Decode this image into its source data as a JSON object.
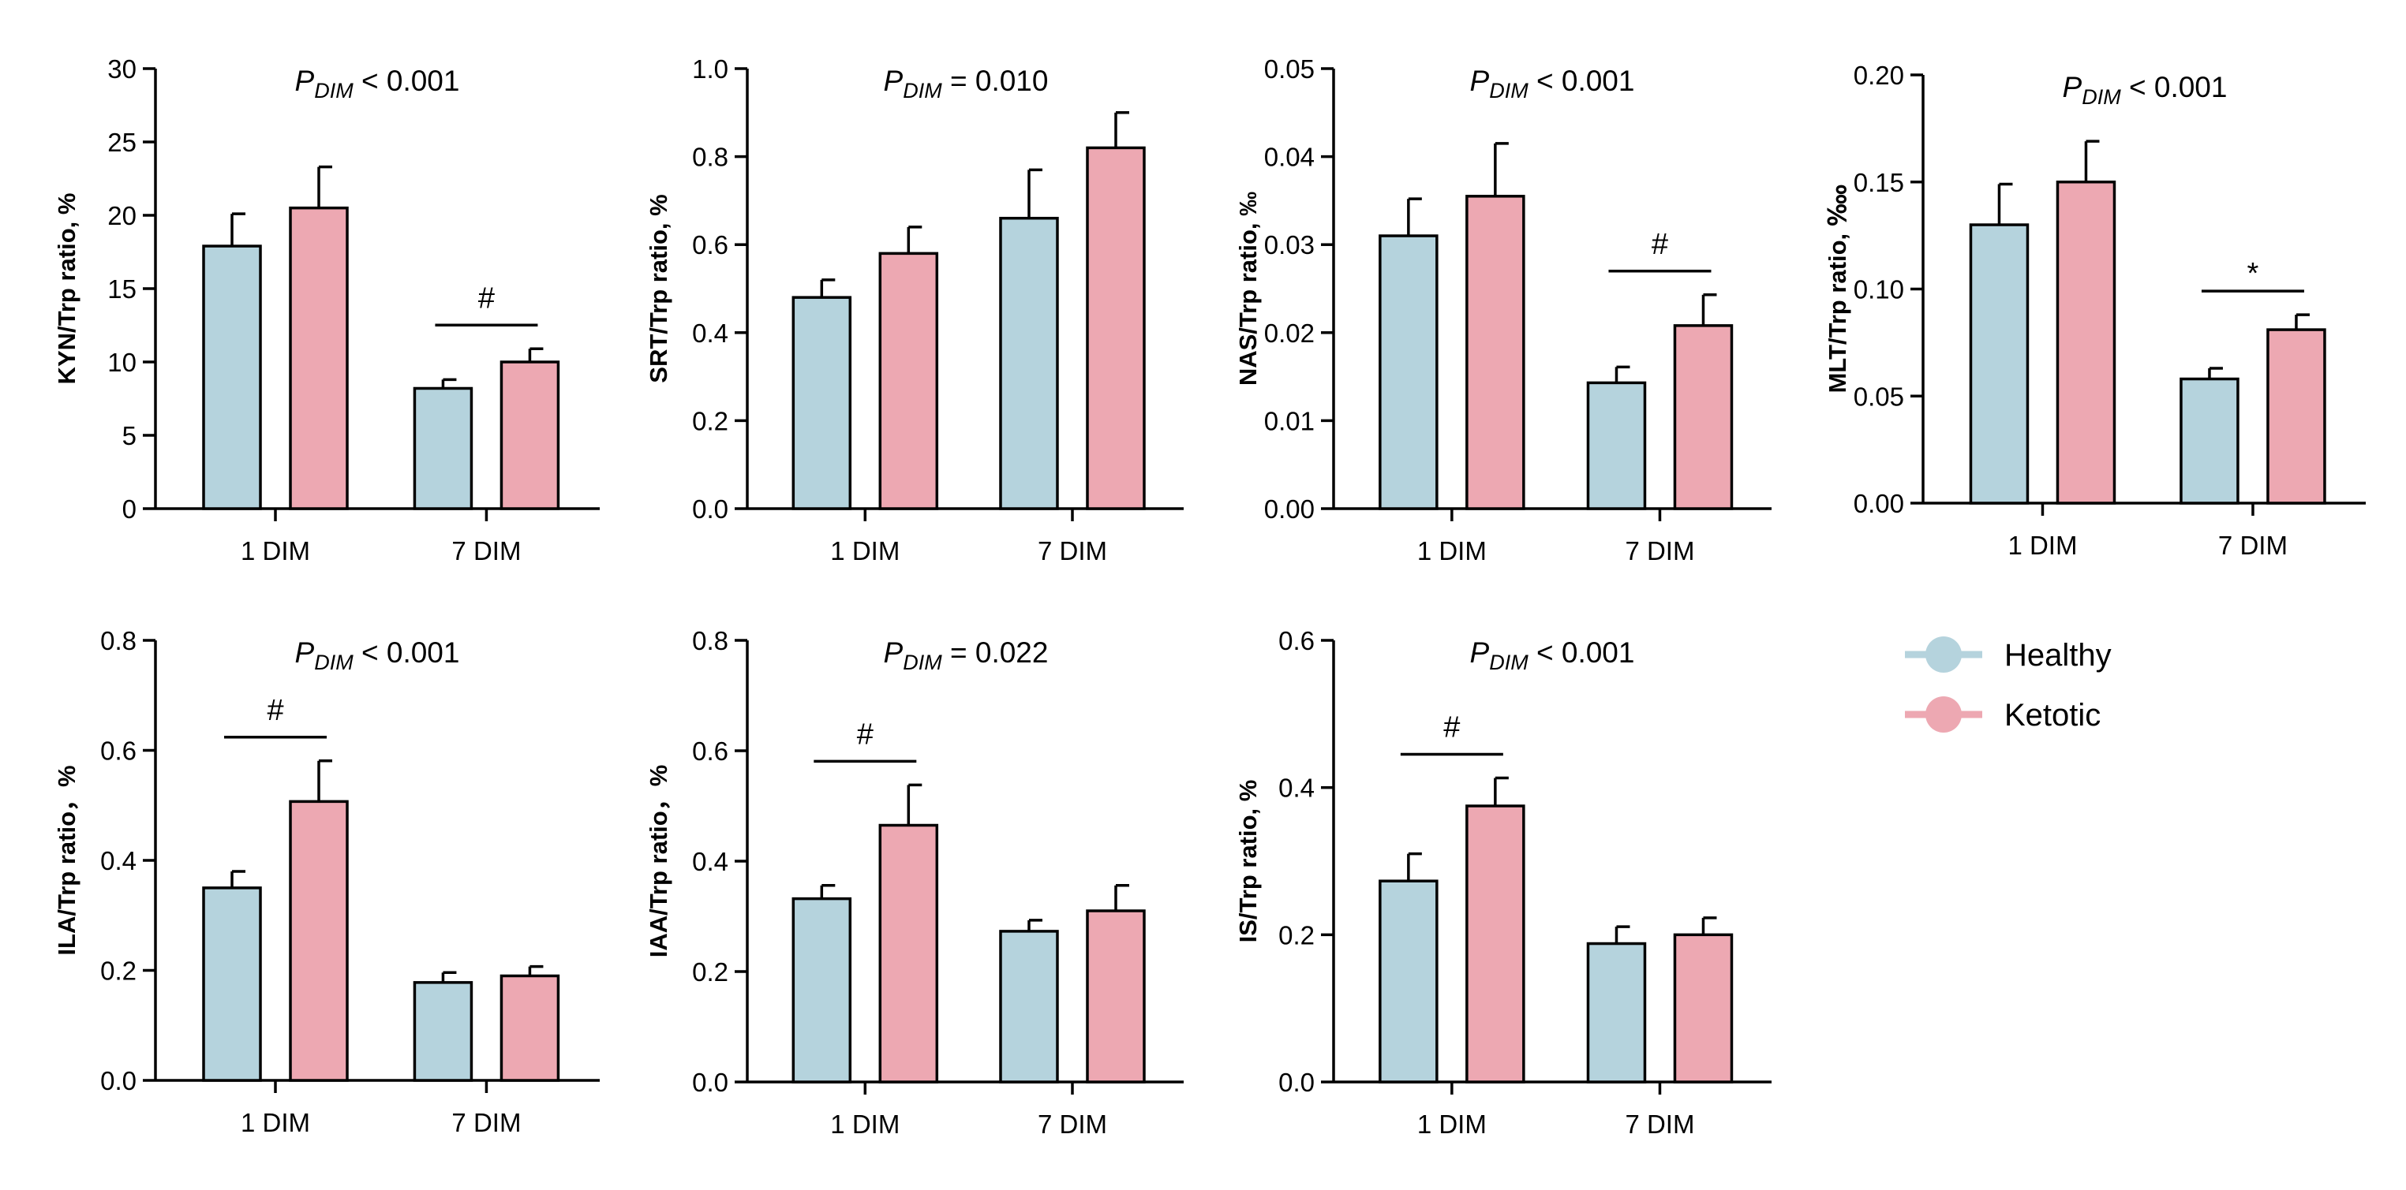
{
  "colors": {
    "healthy": "#b5d3dd",
    "ketotic": "#eda8b2",
    "axis": "#000000"
  },
  "legend": {
    "items": [
      {
        "label": "Healthy",
        "color": "#b5d3dd"
      },
      {
        "label": "Ketotic",
        "color": "#eda8b2"
      }
    ]
  },
  "chart_data": [
    {
      "type": "bar",
      "id": "kyn",
      "ylabel": "KYN/Trp ratio, %",
      "p_label": "P",
      "p_sub": "DIM",
      "p_value": " < 0.001",
      "ylim": [
        0,
        30
      ],
      "yticks": [
        0,
        5,
        10,
        15,
        20,
        25,
        30
      ],
      "tick_labels": [
        "0",
        "5",
        "10",
        "15",
        "20",
        "25",
        "30"
      ],
      "categories": [
        "1 DIM",
        "7 DIM"
      ],
      "series": [
        {
          "name": "Healthy",
          "values": [
            17.9,
            8.2
          ],
          "errors": [
            2.2,
            0.6
          ]
        },
        {
          "name": "Ketotic",
          "values": [
            20.5,
            10.0
          ],
          "errors": [
            2.8,
            0.9
          ]
        }
      ],
      "annotations": [
        {
          "category": 1,
          "symbol": "#"
        }
      ]
    },
    {
      "type": "bar",
      "id": "srt",
      "ylabel": "SRT/Trp ratio, %",
      "p_label": "P",
      "p_sub": "DIM",
      "p_value": " = 0.010",
      "ylim": [
        0,
        1.0
      ],
      "yticks": [
        0,
        0.2,
        0.4,
        0.6,
        0.8,
        1.0
      ],
      "tick_labels": [
        "0.0",
        "0.2",
        "0.4",
        "0.6",
        "0.8",
        "1.0"
      ],
      "categories": [
        "1 DIM",
        "7 DIM"
      ],
      "series": [
        {
          "name": "Healthy",
          "values": [
            0.48,
            0.66
          ],
          "errors": [
            0.04,
            0.11
          ]
        },
        {
          "name": "Ketotic",
          "values": [
            0.58,
            0.82
          ],
          "errors": [
            0.06,
            0.08
          ]
        }
      ],
      "annotations": []
    },
    {
      "type": "bar",
      "id": "nas",
      "ylabel": "NAS/Trp ratio, ‰",
      "p_label": "P",
      "p_sub": "DIM",
      "p_value": " < 0.001",
      "ylim": [
        0,
        0.05
      ],
      "yticks": [
        0,
        0.01,
        0.02,
        0.03,
        0.04,
        0.05
      ],
      "tick_labels": [
        "0.00",
        "0.01",
        "0.02",
        "0.03",
        "0.04",
        "0.05"
      ],
      "categories": [
        "1 DIM",
        "7 DIM"
      ],
      "series": [
        {
          "name": "Healthy",
          "values": [
            0.031,
            0.0143
          ],
          "errors": [
            0.0042,
            0.0018
          ]
        },
        {
          "name": "Ketotic",
          "values": [
            0.0355,
            0.0208
          ],
          "errors": [
            0.006,
            0.0035
          ]
        }
      ],
      "annotations": [
        {
          "category": 1,
          "symbol": "#"
        }
      ]
    },
    {
      "type": "bar",
      "id": "mlt",
      "ylabel": "MLT/Trp ratio, ‱",
      "p_label": "P",
      "p_sub": "DIM",
      "p_value": " < 0.001",
      "ylim": [
        0,
        0.2
      ],
      "yticks": [
        0,
        0.05,
        0.1,
        0.15,
        0.2
      ],
      "tick_labels": [
        "0.00",
        "0.05",
        "0.10",
        "0.15",
        "0.20"
      ],
      "categories": [
        "1 DIM",
        "7 DIM"
      ],
      "series": [
        {
          "name": "Healthy",
          "values": [
            0.13,
            0.058
          ],
          "errors": [
            0.019,
            0.005
          ]
        },
        {
          "name": "Ketotic",
          "values": [
            0.15,
            0.081
          ],
          "errors": [
            0.019,
            0.007
          ]
        }
      ],
      "annotations": [
        {
          "category": 1,
          "symbol": "*"
        }
      ]
    },
    {
      "type": "bar",
      "id": "ila",
      "ylabel": "ILA/Trp ratio，%",
      "p_label": "P",
      "p_sub": "DIM",
      "p_value": " < 0.001",
      "ylim": [
        0,
        0.8
      ],
      "yticks": [
        0,
        0.2,
        0.4,
        0.6,
        0.8
      ],
      "tick_labels": [
        "0.0",
        "0.2",
        "0.4",
        "0.6",
        "0.8"
      ],
      "categories": [
        "1 DIM",
        "7 DIM"
      ],
      "series": [
        {
          "name": "Healthy",
          "values": [
            0.35,
            0.178
          ],
          "errors": [
            0.03,
            0.018
          ]
        },
        {
          "name": "Ketotic",
          "values": [
            0.507,
            0.19
          ],
          "errors": [
            0.074,
            0.017
          ]
        }
      ],
      "annotations": [
        {
          "category": 0,
          "symbol": "#"
        }
      ]
    },
    {
      "type": "bar",
      "id": "iaa",
      "ylabel": "IAA/Trp ratio，%",
      "p_label": "P",
      "p_sub": "DIM",
      "p_value": " = 0.022",
      "ylim": [
        0,
        0.8
      ],
      "yticks": [
        0,
        0.2,
        0.4,
        0.6,
        0.8
      ],
      "tick_labels": [
        "0.0",
        "0.2",
        "0.4",
        "0.6",
        "0.8"
      ],
      "categories": [
        "1 DIM",
        "7 DIM"
      ],
      "series": [
        {
          "name": "Healthy",
          "values": [
            0.332,
            0.273
          ],
          "errors": [
            0.024,
            0.02
          ]
        },
        {
          "name": "Ketotic",
          "values": [
            0.465,
            0.31
          ],
          "errors": [
            0.073,
            0.046
          ]
        }
      ],
      "annotations": [
        {
          "category": 0,
          "symbol": "#"
        }
      ]
    },
    {
      "type": "bar",
      "id": "is",
      "ylabel": "IS/Trp ratio, %",
      "p_label": "P",
      "p_sub": "DIM",
      "p_value": " < 0.001",
      "ylim": [
        0,
        0.6
      ],
      "yticks": [
        0,
        0.2,
        0.4,
        0.6
      ],
      "tick_labels": [
        "0.0",
        "0.2",
        "0.4",
        "0.6"
      ],
      "categories": [
        "1 DIM",
        "7 DIM"
      ],
      "series": [
        {
          "name": "Healthy",
          "values": [
            0.273,
            0.188
          ],
          "errors": [
            0.037,
            0.023
          ]
        },
        {
          "name": "Ketotic",
          "values": [
            0.375,
            0.2
          ],
          "errors": [
            0.038,
            0.023
          ]
        }
      ],
      "annotations": [
        {
          "category": 0,
          "symbol": "#"
        }
      ]
    }
  ]
}
